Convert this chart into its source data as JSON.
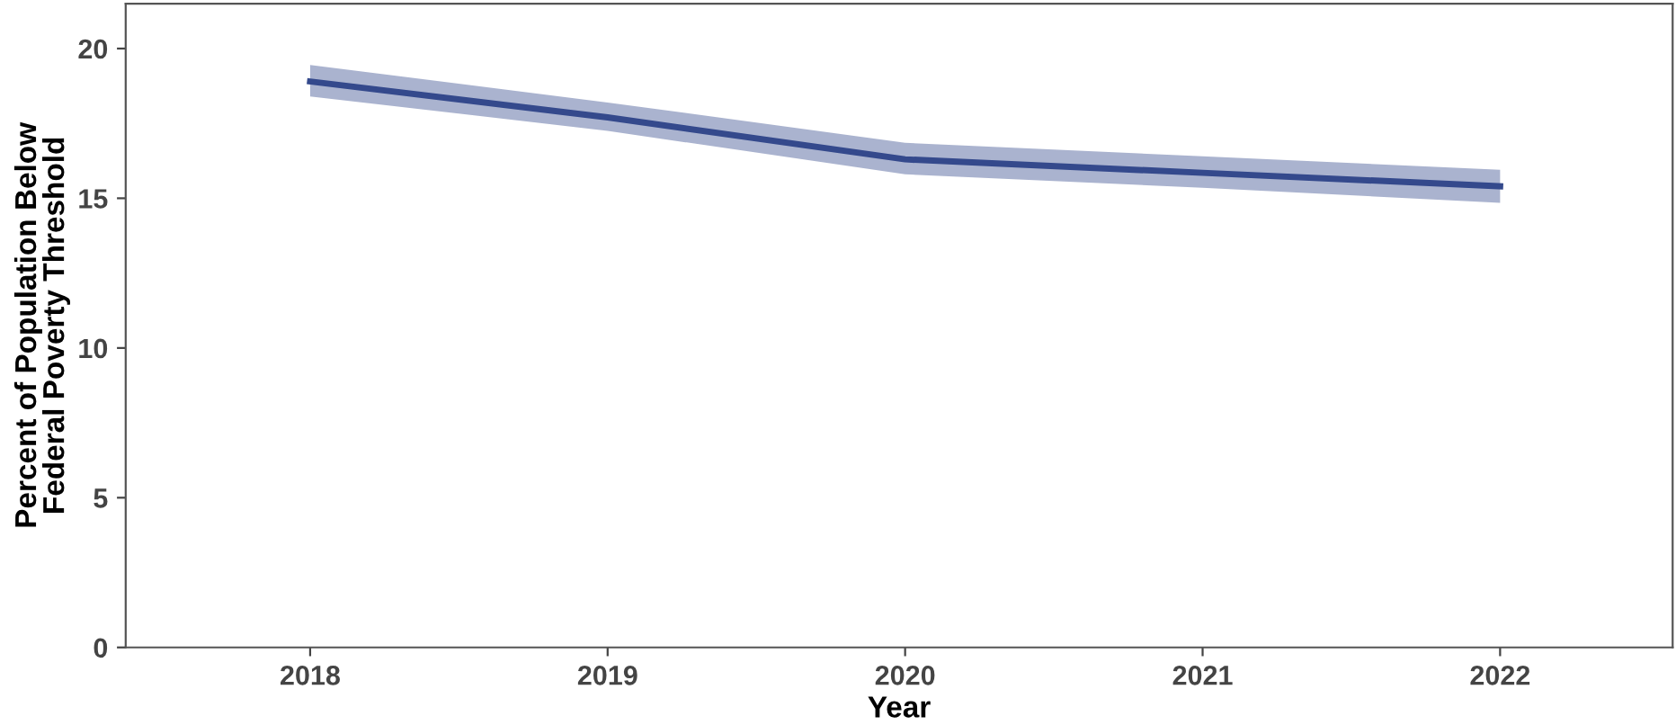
{
  "chart_data": {
    "type": "line",
    "xlabel": "Year",
    "ylabel": "Percent of Population Below\nFederal Poverty Threshold",
    "x": [
      2018,
      2019,
      2020,
      2021,
      2022
    ],
    "series": [
      {
        "color": "#34498c",
        "values": [
          18.9,
          17.7,
          16.3,
          15.85,
          15.4
        ],
        "lower": [
          18.4,
          17.25,
          15.8,
          15.35,
          14.85
        ],
        "upper": [
          19.45,
          18.2,
          16.85,
          16.4,
          15.95
        ]
      }
    ],
    "xlim": [
      2017.38,
      2022.58
    ],
    "ylim": [
      0,
      21.5
    ],
    "xticks": [
      2018,
      2019,
      2020,
      2021,
      2022
    ],
    "yticks": [
      0,
      5,
      10,
      15,
      20
    ],
    "grid": false,
    "legend": false,
    "marker": "none",
    "line_style": "solid"
  }
}
